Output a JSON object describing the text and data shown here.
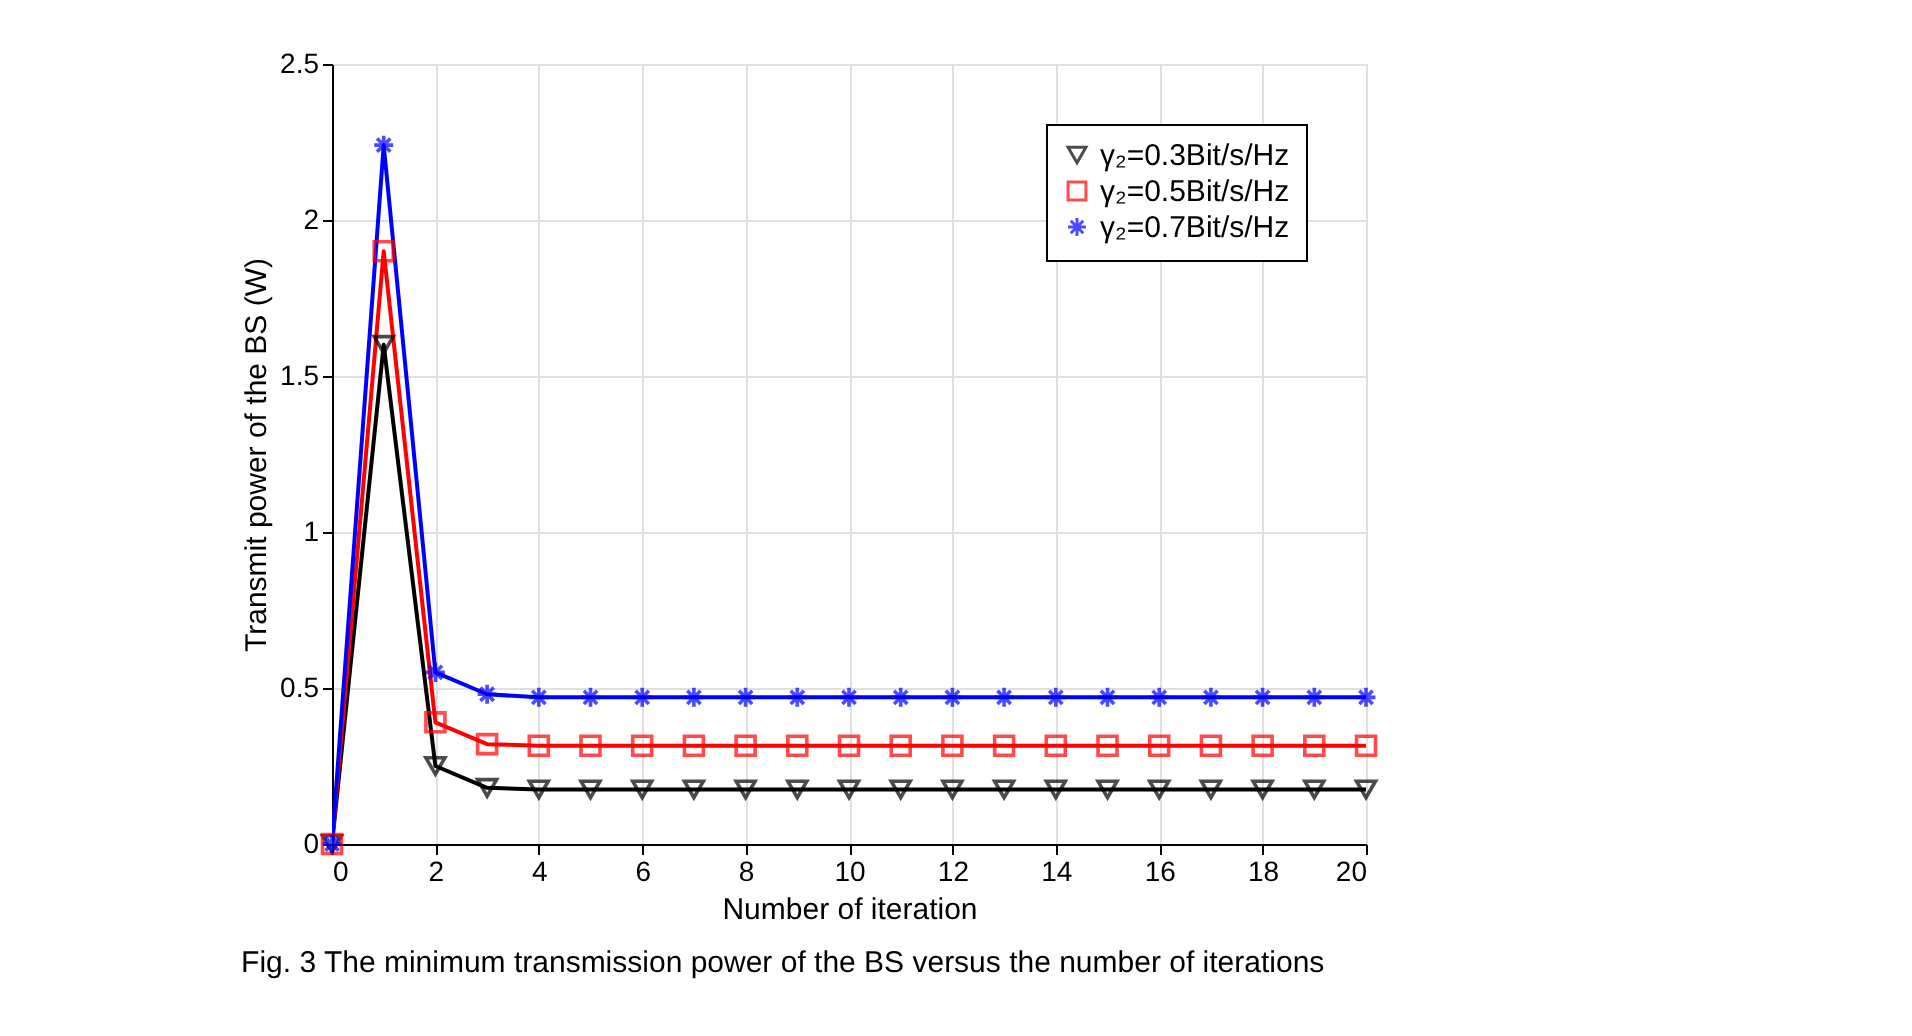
{
  "chart_data": {
    "type": "line",
    "xlabel": "Number of iteration",
    "ylabel": "Transmit power of the BS (W)",
    "x": [
      0,
      1,
      2,
      3,
      4,
      5,
      6,
      7,
      8,
      9,
      10,
      11,
      12,
      13,
      14,
      15,
      16,
      17,
      18,
      19,
      20
    ],
    "series": [
      {
        "name": "γ₂=0.3Bit/s/Hz",
        "color": "#000000",
        "marker": "triangle-down",
        "values": [
          0,
          1.6,
          0.25,
          0.18,
          0.175,
          0.175,
          0.175,
          0.175,
          0.175,
          0.175,
          0.175,
          0.175,
          0.175,
          0.175,
          0.175,
          0.175,
          0.175,
          0.175,
          0.175,
          0.175,
          0.175
        ]
      },
      {
        "name": "γ₂=0.5Bit/s/Hz",
        "color": "#ff0000",
        "marker": "square",
        "values": [
          0,
          1.9,
          0.39,
          0.32,
          0.315,
          0.315,
          0.315,
          0.315,
          0.315,
          0.315,
          0.315,
          0.315,
          0.315,
          0.315,
          0.315,
          0.315,
          0.315,
          0.315,
          0.315,
          0.315,
          0.315
        ]
      },
      {
        "name": "γ₂=0.7Bit/s/Hz",
        "color": "#0000ff",
        "marker": "cross",
        "values": [
          0,
          2.24,
          0.55,
          0.48,
          0.47,
          0.47,
          0.47,
          0.47,
          0.47,
          0.47,
          0.47,
          0.47,
          0.47,
          0.47,
          0.47,
          0.47,
          0.47,
          0.47,
          0.47,
          0.47,
          0.47
        ]
      }
    ],
    "xlim": [
      0,
      20
    ],
    "xticks": [
      0,
      2,
      4,
      6,
      8,
      10,
      12,
      14,
      16,
      18,
      20
    ],
    "ylim": [
      0,
      2.5
    ],
    "yticks": [
      0,
      0.5,
      1,
      1.5,
      2,
      2.5
    ],
    "grid": true,
    "legend": "top right",
    "line_style": "solid",
    "annotations": [
      "Fig. 3  The minimum transmission power of the BS versus the number of iterations"
    ]
  }
}
